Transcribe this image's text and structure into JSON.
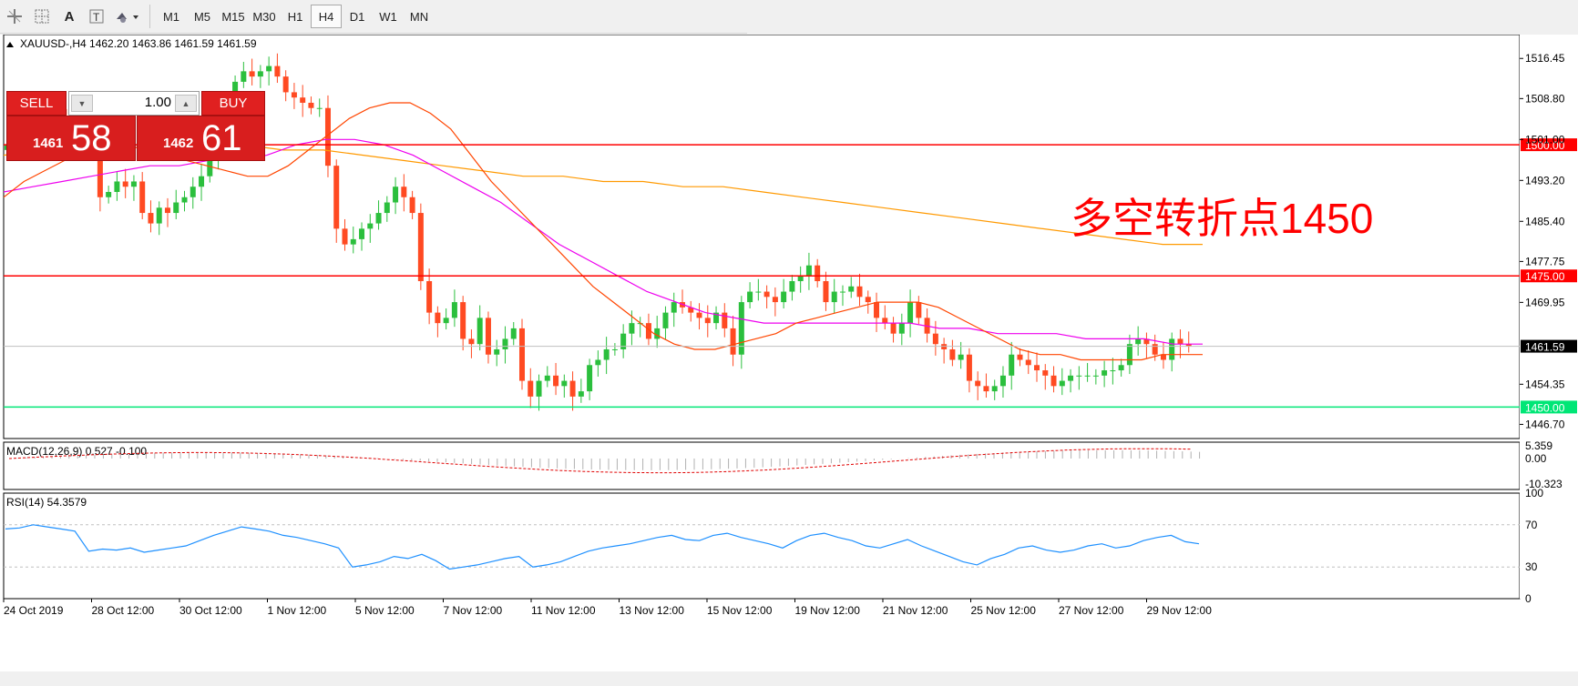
{
  "toolbar": {
    "icons": [
      "crosshair-icon",
      "grid-icon",
      "text-icon",
      "text-label-icon",
      "shapes-icon"
    ],
    "text_label": "A",
    "timeframes": [
      "M1",
      "M5",
      "M15",
      "M30",
      "H1",
      "H4",
      "D1",
      "W1",
      "MN"
    ],
    "active_timeframe": "H4"
  },
  "chart": {
    "header": "XAUUSD-,H4  1462.20 1463.86 1461.59 1461.59",
    "annotation": "多空转折点1450",
    "price_axis_labels": [
      "1516.45",
      "1508.80",
      "1501.00",
      "1493.20",
      "1485.40",
      "1477.75",
      "1469.95",
      "1461.59",
      "1454.35",
      "1446.70"
    ],
    "current_price_label": "1461.59",
    "hlines": [
      {
        "label": "1500.00",
        "price": 1500.0,
        "color": "#ff0000"
      },
      {
        "label": "1475.00",
        "price": 1475.0,
        "color": "#ff0000"
      },
      {
        "label": "1450.00",
        "price": 1450.0,
        "color": "#00e676"
      }
    ]
  },
  "trade_panel": {
    "sell_label": "SELL",
    "buy_label": "BUY",
    "lot": "1.00",
    "bid_small": "1461",
    "bid_big": "58",
    "ask_small": "1462",
    "ask_big": "61"
  },
  "macd": {
    "label": "MACD(12,26,9) 0.527 -0.100",
    "axis_labels": [
      "5.359",
      "0.00",
      "-10.323"
    ]
  },
  "rsi": {
    "label": "RSI(14) 54.3579",
    "axis_labels": [
      "100",
      "70",
      "30",
      "0"
    ]
  },
  "time_axis": [
    "24 Oct 2019",
    "28 Oct 12:00",
    "30 Oct 12:00",
    "1 Nov 12:00",
    "5 Nov 12:00",
    "7 Nov 12:00",
    "11 Nov 12:00",
    "13 Nov 12:00",
    "15 Nov 12:00",
    "19 Nov 12:00",
    "21 Nov 12:00",
    "25 Nov 12:00",
    "27 Nov 12:00",
    "29 Nov 12:00"
  ],
  "chart_data": {
    "type": "candlestick",
    "symbol": "XAUUSD-",
    "timeframe": "H4",
    "ylim": [
      1444,
      1521
    ],
    "closes": [
      1500,
      1502,
      1503,
      1504,
      1505,
      1506,
      1505,
      1504,
      1505,
      1506,
      1504,
      1490,
      1491,
      1493,
      1492,
      1493,
      1487,
      1485,
      1488,
      1487,
      1489,
      1490,
      1492,
      1494,
      1497,
      1500,
      1506,
      1512,
      1514,
      1513,
      1514,
      1515,
      1513,
      1510,
      1509,
      1508,
      1507,
      1507,
      1496,
      1484,
      1481,
      1482,
      1484,
      1485,
      1487,
      1489,
      1492,
      1490,
      1487,
      1474,
      1468,
      1466,
      1467,
      1470,
      1463,
      1462,
      1467,
      1460,
      1461,
      1463,
      1465,
      1455,
      1452,
      1455,
      1456,
      1454,
      1455,
      1452,
      1453,
      1458,
      1459,
      1461,
      1461,
      1464,
      1466,
      1466,
      1463,
      1465,
      1468,
      1470,
      1469,
      1468,
      1467,
      1466,
      1468,
      1465,
      1460,
      1470,
      1472,
      1472,
      1471,
      1470,
      1472,
      1474,
      1475,
      1477,
      1474,
      1470,
      1472,
      1472,
      1473,
      1471,
      1470,
      1467,
      1466,
      1464,
      1466,
      1470,
      1467,
      1464,
      1462,
      1461,
      1459,
      1460,
      1455,
      1454,
      1453,
      1454,
      1456,
      1460,
      1459,
      1458,
      1457,
      1456,
      1454,
      1455,
      1456,
      1456,
      1456,
      1456,
      1457,
      1457,
      1458,
      1462,
      1463,
      1462,
      1460,
      1459,
      1463,
      1462,
      1461.59
    ],
    "ma_fast": [
      1490,
      1493,
      1495,
      1497,
      1499,
      1500,
      1500,
      1499,
      1498,
      1497,
      1496,
      1495,
      1494,
      1494,
      1496,
      1499,
      1502,
      1505,
      1507,
      1508,
      1508,
      1506,
      1503,
      1498,
      1493,
      1489,
      1485,
      1481,
      1477,
      1473,
      1470,
      1467,
      1464,
      1462,
      1461,
      1461,
      1462,
      1463,
      1464,
      1466,
      1467,
      1468,
      1469,
      1470,
      1470,
      1470,
      1469,
      1467,
      1465,
      1463,
      1461,
      1460,
      1460,
      1459,
      1459,
      1459,
      1459,
      1460,
      1460,
      1460
    ],
    "ma_mid": [
      1491,
      1492,
      1493,
      1494,
      1495,
      1496,
      1496,
      1497,
      1497,
      1498,
      1500,
      1501,
      1501,
      1500,
      1498,
      1495,
      1492,
      1489,
      1485,
      1481,
      1478,
      1475,
      1472,
      1470,
      1468,
      1467,
      1466,
      1466,
      1466,
      1466,
      1466,
      1466,
      1465,
      1465,
      1464,
      1464,
      1464,
      1463,
      1463,
      1463,
      1462,
      1462
    ],
    "ma_slow": [
      1498,
      1499,
      1499,
      1500,
      1500,
      1500,
      1500,
      1499,
      1499,
      1498,
      1497,
      1496,
      1495,
      1494,
      1494,
      1493,
      1493,
      1492,
      1492,
      1491,
      1490,
      1489,
      1488,
      1487,
      1486,
      1485,
      1484,
      1483,
      1482,
      1481,
      1481
    ],
    "rsi_values": [
      66,
      67,
      70,
      68,
      66,
      64,
      45,
      47,
      46,
      48,
      44,
      46,
      48,
      50,
      55,
      60,
      64,
      68,
      66,
      64,
      60,
      58,
      55,
      52,
      48,
      30,
      32,
      35,
      40,
      38,
      42,
      36,
      28,
      30,
      32,
      35,
      38,
      40,
      30,
      32,
      35,
      40,
      45,
      48,
      50,
      52,
      55,
      58,
      60,
      56,
      55,
      60,
      62,
      58,
      55,
      52,
      48,
      55,
      60,
      62,
      58,
      55,
      50,
      48,
      52,
      56,
      50,
      45,
      40,
      35,
      32,
      38,
      42,
      48,
      50,
      46,
      44,
      46,
      50,
      52,
      48,
      50,
      55,
      58,
      60,
      54,
      52
    ]
  }
}
